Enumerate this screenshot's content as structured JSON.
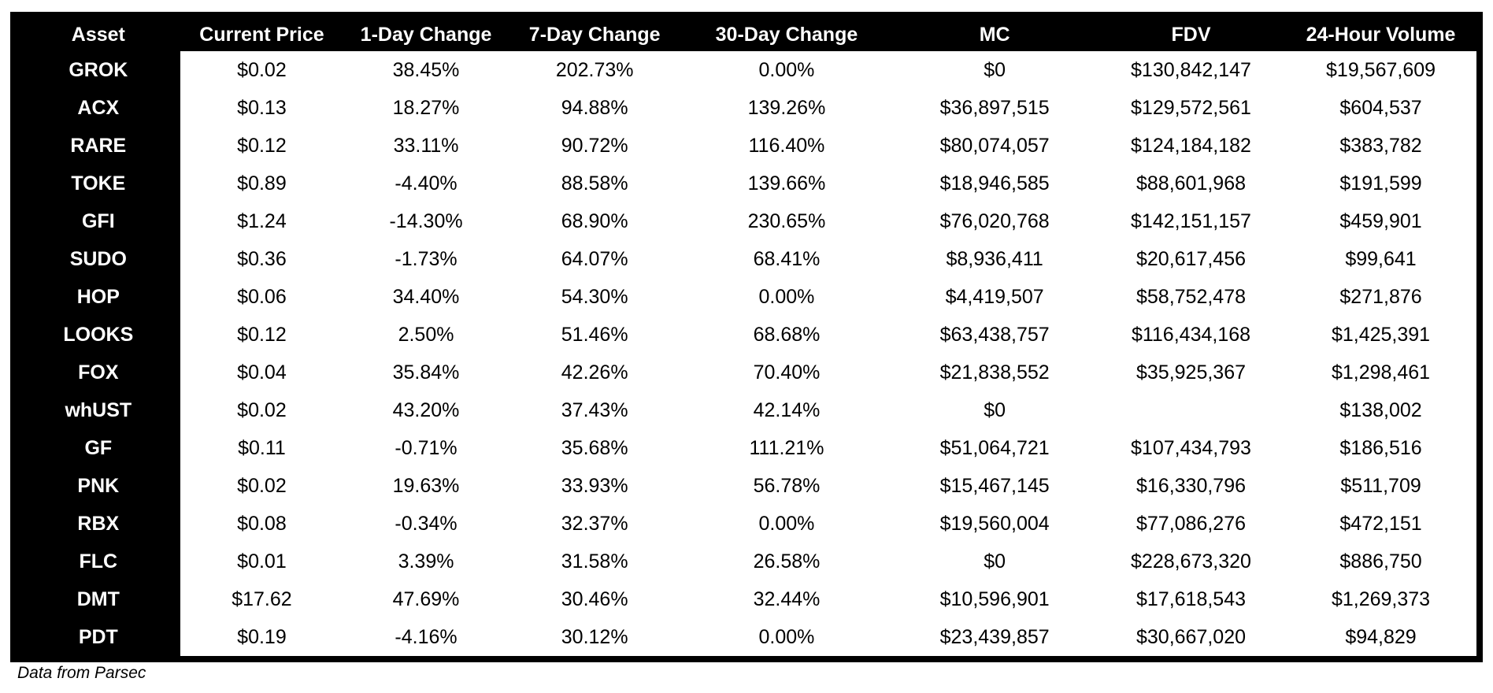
{
  "chart_data": {
    "type": "table",
    "title": "",
    "caption": "Data from Parsec",
    "columns": [
      "Asset",
      "Current Price",
      "1-Day Change",
      "7-Day Change",
      "30-Day Change",
      "MC",
      "FDV",
      "24-Hour Volume"
    ],
    "rows": [
      [
        "GROK",
        "$0.02",
        "38.45%",
        "202.73%",
        "0.00%",
        "$0",
        "$130,842,147",
        "$19,567,609"
      ],
      [
        "ACX",
        "$0.13",
        "18.27%",
        "94.88%",
        "139.26%",
        "$36,897,515",
        "$129,572,561",
        "$604,537"
      ],
      [
        "RARE",
        "$0.12",
        "33.11%",
        "90.72%",
        "116.40%",
        "$80,074,057",
        "$124,184,182",
        "$383,782"
      ],
      [
        "TOKE",
        "$0.89",
        "-4.40%",
        "88.58%",
        "139.66%",
        "$18,946,585",
        "$88,601,968",
        "$191,599"
      ],
      [
        "GFI",
        "$1.24",
        "-14.30%",
        "68.90%",
        "230.65%",
        "$76,020,768",
        "$142,151,157",
        "$459,901"
      ],
      [
        "SUDO",
        "$0.36",
        "-1.73%",
        "64.07%",
        "68.41%",
        "$8,936,411",
        "$20,617,456",
        "$99,641"
      ],
      [
        "HOP",
        "$0.06",
        "34.40%",
        "54.30%",
        "0.00%",
        "$4,419,507",
        "$58,752,478",
        "$271,876"
      ],
      [
        "LOOKS",
        "$0.12",
        "2.50%",
        "51.46%",
        "68.68%",
        "$63,438,757",
        "$116,434,168",
        "$1,425,391"
      ],
      [
        "FOX",
        "$0.04",
        "35.84%",
        "42.26%",
        "70.40%",
        "$21,838,552",
        "$35,925,367",
        "$1,298,461"
      ],
      [
        "whUST",
        "$0.02",
        "43.20%",
        "37.43%",
        "42.14%",
        "$0",
        "",
        "$138,002"
      ],
      [
        "GF",
        "$0.11",
        "-0.71%",
        "35.68%",
        "111.21%",
        "$51,064,721",
        "$107,434,793",
        "$186,516"
      ],
      [
        "PNK",
        "$0.02",
        "19.63%",
        "33.93%",
        "56.78%",
        "$15,467,145",
        "$16,330,796",
        "$511,709"
      ],
      [
        "RBX",
        "$0.08",
        "-0.34%",
        "32.37%",
        "0.00%",
        "$19,560,004",
        "$77,086,276",
        "$472,151"
      ],
      [
        "FLC",
        "$0.01",
        "3.39%",
        "31.58%",
        "26.58%",
        "$0",
        "$228,673,320",
        "$886,750"
      ],
      [
        "DMT",
        "$17.62",
        "47.69%",
        "30.46%",
        "32.44%",
        "$10,596,901",
        "$17,618,543",
        "$1,269,373"
      ],
      [
        "PDT",
        "$0.19",
        "-4.16%",
        "30.12%",
        "0.00%",
        "$23,439,857",
        "$30,667,020",
        "$94,829"
      ]
    ],
    "column_widths_pct": [
      11.2,
      11.2,
      11.3,
      11.8,
      14.5,
      14.0,
      12.9,
      13.1
    ],
    "colors": {
      "header_bg": "#000000",
      "header_text": "#ffffff",
      "row_label_bg": "#000000",
      "row_label_text": "#ffffff",
      "cell_bg": "#ffffff",
      "cell_text": "#000000",
      "frame": "#000000"
    },
    "layout": {
      "grid": false,
      "legend": "none"
    }
  }
}
